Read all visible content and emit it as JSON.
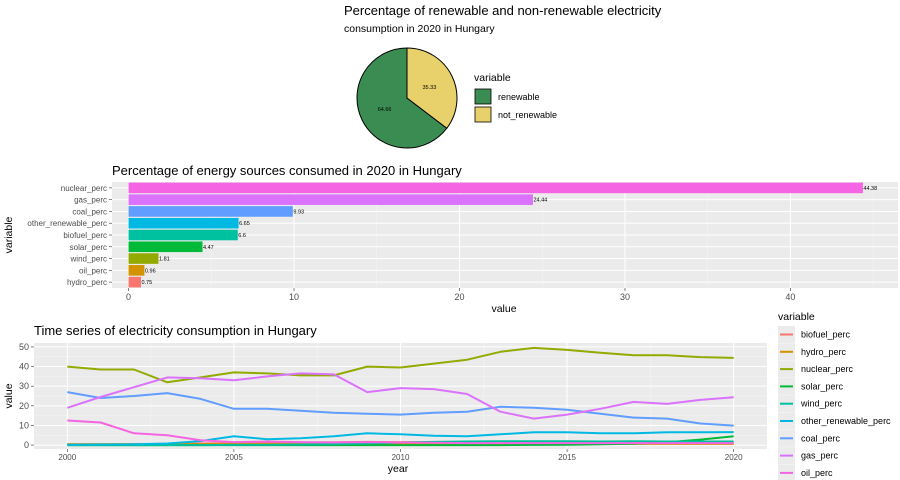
{
  "chart_data": [
    {
      "type": "pie",
      "title": "Percentage of renewable and non-renewable electricity",
      "subtitle": "consumption in 2020 in Hungary",
      "legend_title": "variable",
      "legend_position": "right",
      "slices": [
        {
          "label": "renewable",
          "value": 64.66,
          "value_label": "64.66",
          "color": "#3b8c52"
        },
        {
          "label": "not_renewable",
          "value": 35.33,
          "value_label": "35.33",
          "color": "#e8d06a"
        }
      ]
    },
    {
      "type": "bar",
      "orientation": "horizontal",
      "title": "Percentage of energy sources consumed in 2020 in Hungary",
      "xlabel": "value",
      "ylabel": "variable",
      "xlim": [
        -1,
        46.5
      ],
      "xticks": [
        0,
        10,
        20,
        30,
        40
      ],
      "grid": true,
      "categories": [
        "nuclear_perc",
        "gas_perc",
        "coal_perc",
        "other_renewable_perc",
        "biofuel_perc",
        "solar_perc",
        "wind_perc",
        "oil_perc",
        "hydro_perc"
      ],
      "values": [
        44.38,
        24.44,
        9.93,
        6.65,
        6.6,
        4.47,
        1.81,
        0.96,
        0.75
      ],
      "value_labels": [
        "44.38",
        "24.44",
        "9.93",
        "6.65",
        "6.6",
        "4.47",
        "1.81",
        "0.96",
        "0.75"
      ],
      "colors": [
        "#f564e3",
        "#db72fb",
        "#619cff",
        "#00b9e3",
        "#00c19f",
        "#00ba38",
        "#93aa00",
        "#d39200",
        "#f8766d"
      ]
    },
    {
      "type": "line",
      "title": "Time series of electricity consumption in Hungary",
      "xlabel": "year",
      "ylabel": "value",
      "xlim": [
        1999,
        2021
      ],
      "ylim": [
        -2,
        52
      ],
      "xticks": [
        2000,
        2005,
        2010,
        2015,
        2020
      ],
      "yticks": [
        0,
        10,
        20,
        30,
        40,
        50
      ],
      "grid": true,
      "legend_title": "variable",
      "legend_position": "right",
      "x": [
        2000,
        2001,
        2002,
        2003,
        2004,
        2005,
        2006,
        2007,
        2008,
        2009,
        2010,
        2011,
        2012,
        2013,
        2014,
        2015,
        2016,
        2017,
        2018,
        2019,
        2020
      ],
      "series": [
        {
          "name": "biofuel_perc",
          "color": "#f8766d",
          "values": [
            0.2,
            0.3,
            0.4,
            0.5,
            0.8,
            1.0,
            1.2,
            1.3,
            1.4,
            1.6,
            1.5,
            1.4,
            1.3,
            1.2,
            1.1,
            1.0,
            1.0,
            0.9,
            0.9,
            0.9,
            0.8
          ]
        },
        {
          "name": "hydro_perc",
          "color": "#d39200",
          "values": [
            0.5,
            0.5,
            0.5,
            0.5,
            0.5,
            0.5,
            0.5,
            0.5,
            0.5,
            0.5,
            0.5,
            0.5,
            0.5,
            0.5,
            0.6,
            0.6,
            0.6,
            0.6,
            0.6,
            0.6,
            0.6
          ]
        },
        {
          "name": "nuclear_perc",
          "color": "#93aa00",
          "values": [
            40.0,
            38.5,
            38.5,
            32.0,
            34.5,
            37.0,
            36.5,
            35.5,
            35.5,
            40.0,
            39.5,
            41.5,
            43.5,
            47.5,
            49.5,
            48.5,
            47.0,
            45.8,
            45.8,
            44.8,
            44.4
          ]
        },
        {
          "name": "solar_perc",
          "color": "#00ba38",
          "values": [
            0,
            0,
            0,
            0,
            0,
            0,
            0,
            0,
            0,
            0,
            0,
            0,
            0,
            0,
            0.1,
            0.2,
            0.4,
            0.7,
            1.4,
            2.8,
            4.5
          ]
        },
        {
          "name": "wind_perc",
          "color": "#00c19f",
          "values": [
            0,
            0,
            0,
            0,
            0,
            0.1,
            0.1,
            0.3,
            0.5,
            0.8,
            1.3,
            1.6,
            1.8,
            1.9,
            1.9,
            1.9,
            1.8,
            1.9,
            1.8,
            1.8,
            1.8
          ]
        },
        {
          "name": "other_renewable_perc",
          "color": "#00b9e3",
          "values": [
            0.2,
            0.3,
            0.4,
            0.8,
            2.0,
            4.5,
            3.0,
            3.5,
            4.5,
            6.0,
            5.5,
            4.8,
            4.5,
            5.5,
            6.5,
            6.5,
            6.0,
            6.0,
            6.5,
            6.5,
            6.6
          ]
        },
        {
          "name": "coal_perc",
          "color": "#619cff",
          "values": [
            27.0,
            24.0,
            25.0,
            26.5,
            23.5,
            18.5,
            18.5,
            17.5,
            16.5,
            16.0,
            15.5,
            16.5,
            17.0,
            19.5,
            19.0,
            18.0,
            16.0,
            14.0,
            13.5,
            11.0,
            9.9
          ]
        },
        {
          "name": "gas_perc",
          "color": "#db72fb",
          "values": [
            19.0,
            24.5,
            29.5,
            34.5,
            34.0,
            33.0,
            35.0,
            36.5,
            36.0,
            27.0,
            29.0,
            28.5,
            26.0,
            17.0,
            13.5,
            15.5,
            18.5,
            22.0,
            21.0,
            23.0,
            24.4
          ]
        },
        {
          "name": "oil_perc",
          "color": "#f564e3",
          "values": [
            12.5,
            11.5,
            6.0,
            5.0,
            2.5,
            1.5,
            1.8,
            1.5,
            1.3,
            1.5,
            1.3,
            1.2,
            1.0,
            1.0,
            1.0,
            1.0,
            1.0,
            1.0,
            1.0,
            1.0,
            1.0
          ]
        }
      ]
    }
  ]
}
